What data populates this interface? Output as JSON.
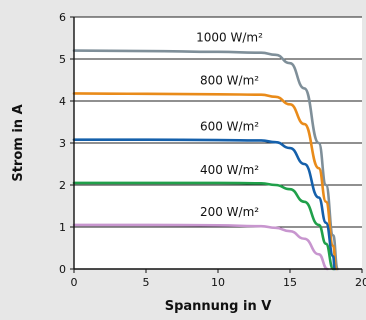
{
  "chart_data": {
    "type": "line",
    "title": "",
    "xlabel": "Spannung in V",
    "ylabel": "Strom in A",
    "xlim": [
      0,
      20
    ],
    "ylim": [
      0,
      6
    ],
    "x_ticks": [
      "0",
      "5",
      "10",
      "15",
      "20"
    ],
    "y_ticks": [
      "0",
      "1",
      "2",
      "3",
      "4",
      "5",
      "6"
    ],
    "grid": "horizontal",
    "series": [
      {
        "name": "1000 W/m²",
        "color": "#7f8f99",
        "x": [
          0,
          5,
          10,
          13,
          14,
          15,
          16,
          17,
          17.5,
          18,
          18.3
        ],
        "y": [
          5.2,
          5.19,
          5.17,
          5.15,
          5.1,
          4.9,
          4.3,
          3.0,
          2.0,
          0.8,
          0
        ]
      },
      {
        "name": "800 W/m²",
        "color": "#e98b1a",
        "x": [
          0,
          5,
          10,
          13,
          14,
          15,
          16,
          17,
          17.5,
          18,
          18.2
        ],
        "y": [
          4.18,
          4.17,
          4.16,
          4.15,
          4.1,
          3.92,
          3.45,
          2.4,
          1.6,
          0.55,
          0
        ]
      },
      {
        "name": "600 W/m²",
        "color": "#1560ab",
        "x": [
          0,
          5,
          10,
          13,
          14,
          15,
          16,
          17,
          17.5,
          18,
          18.1
        ],
        "y": [
          3.08,
          3.08,
          3.07,
          3.06,
          3.02,
          2.88,
          2.5,
          1.7,
          1.1,
          0.3,
          0
        ]
      },
      {
        "name": "400 W/m²",
        "color": "#20a04a",
        "x": [
          0,
          5,
          10,
          13,
          14,
          15,
          16,
          17,
          17.5,
          18
        ],
        "y": [
          2.05,
          2.05,
          2.05,
          2.04,
          2.0,
          1.9,
          1.6,
          1.05,
          0.6,
          0
        ]
      },
      {
        "name": "200 W/m²",
        "color": "#c896cf",
        "x": [
          0,
          5,
          10,
          13,
          14,
          15,
          16,
          17,
          17.6
        ],
        "y": [
          1.05,
          1.05,
          1.04,
          1.02,
          0.98,
          0.9,
          0.72,
          0.35,
          0
        ]
      }
    ]
  }
}
